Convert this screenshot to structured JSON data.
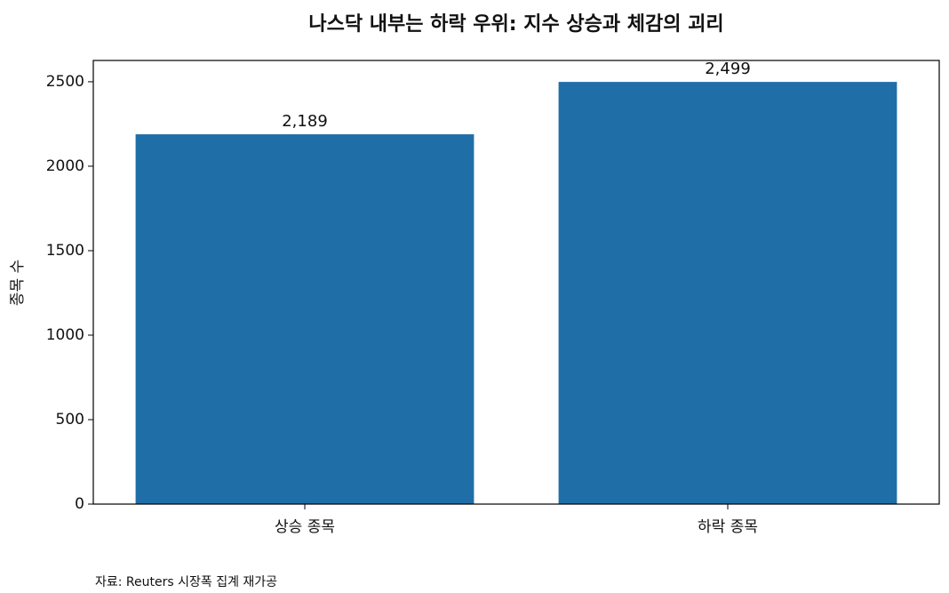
{
  "chart_data": {
    "type": "bar",
    "title": "나스닥 내부는 하락 우위: 지수 상승과 체감의 괴리",
    "y_label": "종목 수",
    "categories": [
      "상승 종목",
      "하락 종목"
    ],
    "values": [
      2189,
      2499
    ],
    "value_labels": [
      "2,189",
      "2,499"
    ],
    "color": "#1f6ea8",
    "ylim": [
      0,
      2626
    ],
    "yticks": [
      0,
      500,
      1000,
      1500,
      2000,
      2500
    ],
    "grid": false,
    "source": "자료: Reuters 시장폭 집계 재가공"
  }
}
